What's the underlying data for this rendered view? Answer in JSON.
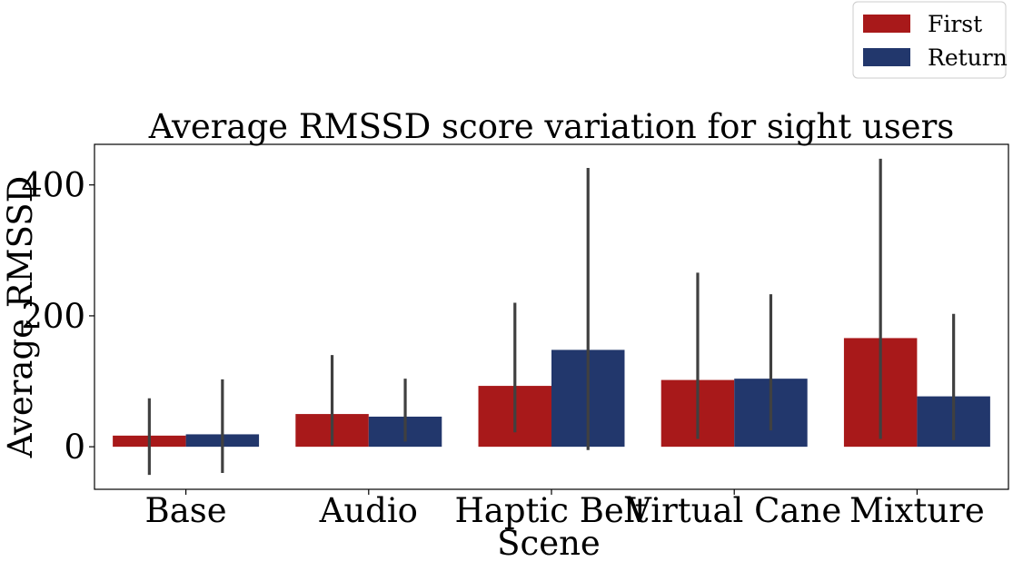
{
  "chart_data": {
    "type": "bar",
    "title": "Average RMSSD score variation for sight users",
    "xlabel": "Scene",
    "ylabel": "Average RMSSD",
    "categories": [
      "Base",
      "Audio",
      "Haptic Belt",
      "Virtual Cane",
      "Mixture"
    ],
    "series": [
      {
        "name": "First",
        "color": "#a8191a",
        "values": [
          17,
          50,
          93,
          102,
          166
        ],
        "error_low": [
          -43,
          2,
          22,
          12,
          12
        ],
        "error_high": [
          74,
          140,
          220,
          266,
          440
        ]
      },
      {
        "name": "Return",
        "color": "#22376c",
        "values": [
          19,
          46,
          148,
          104,
          77
        ],
        "error_low": [
          -40,
          8,
          -5,
          25,
          10
        ],
        "error_high": [
          103,
          104,
          426,
          233,
          203
        ]
      }
    ],
    "ylim": [
      -65,
      462
    ],
    "yticks": [
      0,
      200,
      400
    ],
    "grid": false,
    "legend_position": "top-right"
  }
}
